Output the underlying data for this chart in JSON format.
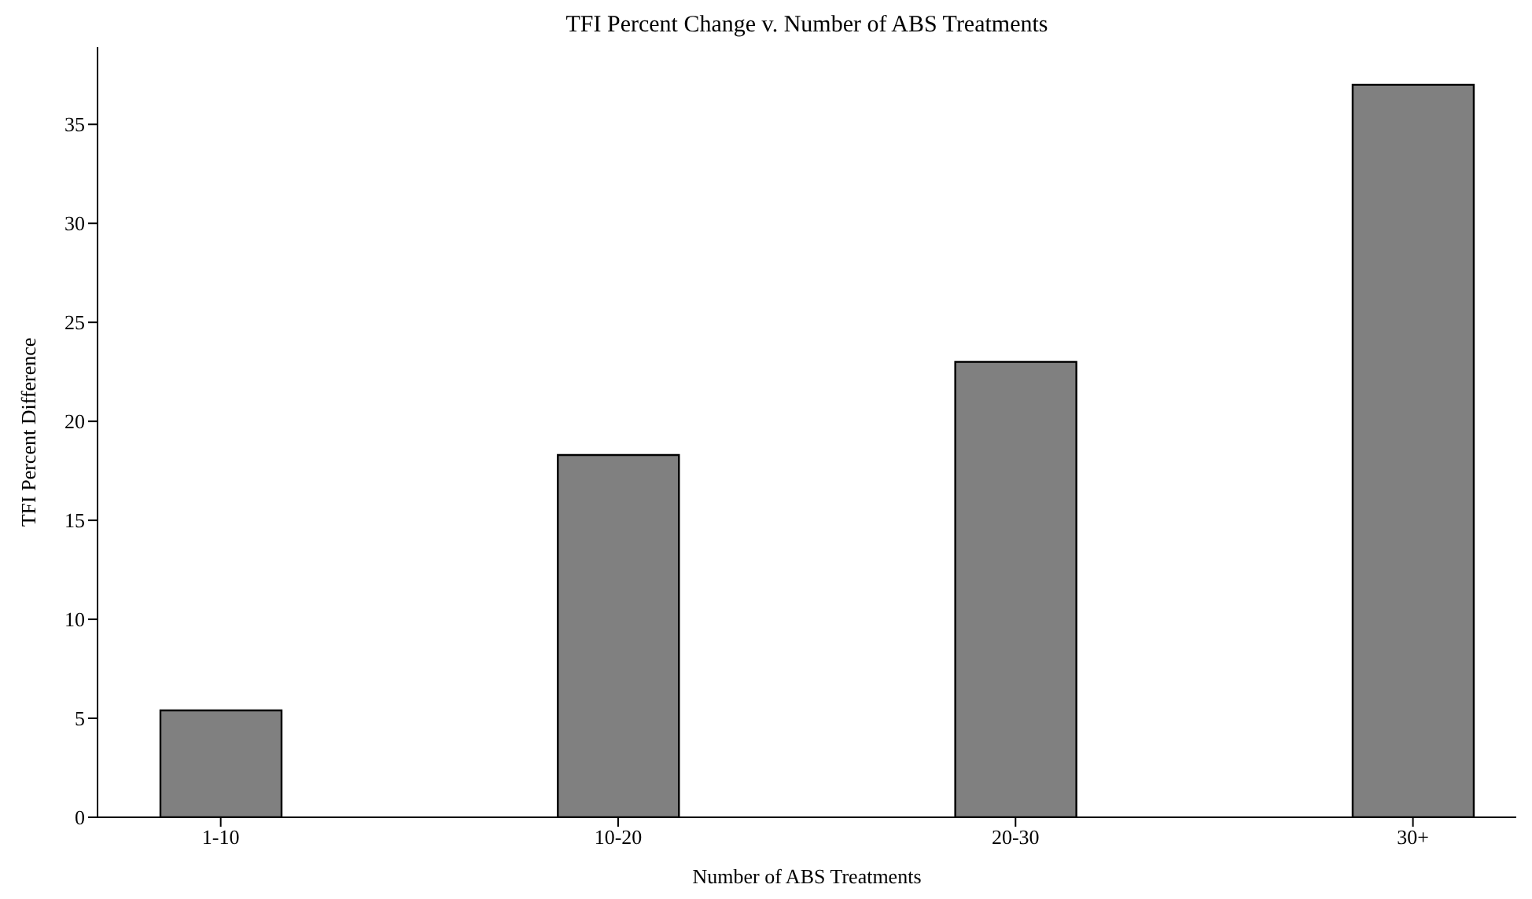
{
  "chart_data": {
    "type": "bar",
    "title": "TFI Percent Change v. Number of ABS Treatments",
    "xlabel": "Number of ABS Treatments",
    "ylabel": "TFI Percent Difference",
    "categories": [
      "1-10",
      "10-20",
      "20-30",
      "30+"
    ],
    "values": [
      5.4,
      18.3,
      23.0,
      37.0
    ],
    "color": "#808080",
    "ylim": [
      0,
      38.9
    ],
    "yticks": [
      0,
      5,
      10,
      15,
      20,
      25,
      30,
      35
    ],
    "grid": false
  }
}
